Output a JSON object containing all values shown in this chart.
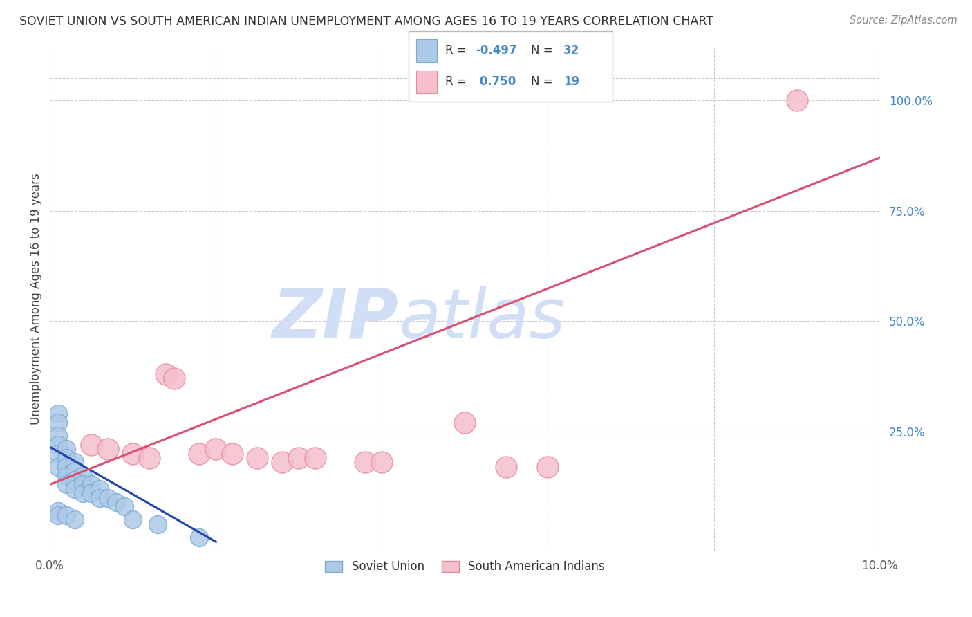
{
  "title": "SOVIET UNION VS SOUTH AMERICAN INDIAN UNEMPLOYMENT AMONG AGES 16 TO 19 YEARS CORRELATION CHART",
  "source": "Source: ZipAtlas.com",
  "ylabel": "Unemployment Among Ages 16 to 19 years",
  "xlim": [
    0.0,
    0.1
  ],
  "ylim": [
    -0.02,
    1.12
  ],
  "xticks": [
    0.0,
    0.02,
    0.04,
    0.06,
    0.08,
    0.1
  ],
  "xtick_labels": [
    "0.0%",
    "",
    "",
    "",
    "",
    "10.0%"
  ],
  "ytick_labels_right": [
    "100.0%",
    "75.0%",
    "50.0%",
    "25.0%"
  ],
  "yticks_right": [
    1.0,
    0.75,
    0.5,
    0.25
  ],
  "blue_color": "#adc9e8",
  "blue_edge": "#7aaad4",
  "blue_line": "#2244aa",
  "pink_color": "#f5bfcc",
  "pink_edge": "#e8889a",
  "pink_line": "#d94f72",
  "grid_color": "#cccccc",
  "watermark": "ZIPatlas",
  "watermark_color": "#d0dff5",
  "soviet_x": [
    0.001,
    0.001,
    0.001,
    0.001,
    0.001,
    0.001,
    0.002,
    0.002,
    0.002,
    0.002,
    0.002,
    0.003,
    0.003,
    0.003,
    0.003,
    0.004,
    0.004,
    0.004,
    0.005,
    0.005,
    0.006,
    0.006,
    0.007,
    0.008,
    0.009,
    0.001,
    0.001,
    0.002,
    0.003,
    0.01,
    0.013,
    0.018
  ],
  "soviet_y": [
    0.29,
    0.27,
    0.24,
    0.22,
    0.2,
    0.17,
    0.21,
    0.19,
    0.17,
    0.15,
    0.13,
    0.18,
    0.16,
    0.14,
    0.12,
    0.15,
    0.13,
    0.11,
    0.13,
    0.11,
    0.12,
    0.1,
    0.1,
    0.09,
    0.08,
    0.07,
    0.06,
    0.06,
    0.05,
    0.05,
    0.04,
    0.01
  ],
  "sa_x": [
    0.005,
    0.007,
    0.01,
    0.012,
    0.014,
    0.015,
    0.018,
    0.02,
    0.022,
    0.025,
    0.028,
    0.03,
    0.032,
    0.038,
    0.04,
    0.05,
    0.055,
    0.06,
    0.09
  ],
  "sa_y": [
    0.22,
    0.21,
    0.2,
    0.19,
    0.38,
    0.37,
    0.2,
    0.21,
    0.2,
    0.19,
    0.18,
    0.19,
    0.19,
    0.18,
    0.18,
    0.27,
    0.17,
    0.17,
    1.0
  ],
  "soviet_trend_x": [
    0.0,
    0.02
  ],
  "soviet_trend_y": [
    0.215,
    0.0
  ],
  "sa_trend_x": [
    0.0,
    0.1
  ],
  "sa_trend_y": [
    0.13,
    0.87
  ]
}
